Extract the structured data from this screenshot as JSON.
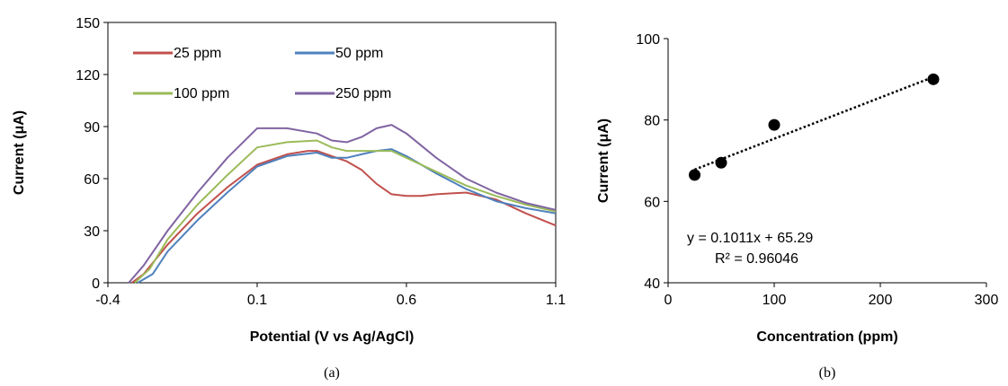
{
  "chart_data": [
    {
      "type": "line",
      "caption": "(a)",
      "xlabel": "Potential (V vs Ag/AgCl)",
      "ylabel": "Current  (μA)",
      "xlim": [
        -0.4,
        1.1
      ],
      "ylim": [
        0,
        150
      ],
      "xticks": [
        -0.4,
        0.1,
        0.6,
        1.1
      ],
      "xtick_labels": [
        "-0.4",
        "0.1",
        "0.6",
        "1.1"
      ],
      "yticks": [
        0,
        30,
        60,
        90,
        120,
        150
      ],
      "ytick_labels": [
        "0",
        "30",
        "60",
        "90",
        "120",
        "150"
      ],
      "grid": false,
      "legend": "top-left, two columns",
      "series": [
        {
          "name": "25 ppm",
          "color": "#c0504d",
          "x": [
            -0.32,
            -0.28,
            -0.2,
            -0.1,
            0.0,
            0.1,
            0.2,
            0.27,
            0.3,
            0.35,
            0.4,
            0.45,
            0.5,
            0.55,
            0.6,
            0.65,
            0.7,
            0.8,
            0.9,
            1.0,
            1.1
          ],
          "y": [
            0,
            5,
            22,
            40,
            55,
            68,
            74,
            76,
            76,
            73,
            70,
            65,
            57,
            51,
            50,
            50,
            51,
            52,
            48,
            40,
            33
          ]
        },
        {
          "name": "50 ppm",
          "color": "#4f81bd",
          "x": [
            -0.3,
            -0.25,
            -0.2,
            -0.1,
            0.0,
            0.1,
            0.2,
            0.3,
            0.35,
            0.4,
            0.45,
            0.5,
            0.55,
            0.6,
            0.7,
            0.8,
            0.9,
            1.0,
            1.1
          ],
          "y": [
            0,
            5,
            18,
            36,
            52,
            67,
            73,
            75,
            72,
            72,
            74,
            76,
            77,
            73,
            63,
            54,
            47,
            43,
            40
          ]
        },
        {
          "name": "100 ppm",
          "color": "#9bbb59",
          "x": [
            -0.31,
            -0.26,
            -0.2,
            -0.1,
            0.0,
            0.1,
            0.2,
            0.3,
            0.35,
            0.4,
            0.45,
            0.5,
            0.55,
            0.6,
            0.7,
            0.8,
            0.9,
            1.0,
            1.1
          ],
          "y": [
            0,
            8,
            25,
            45,
            62,
            78,
            81,
            82,
            78,
            76,
            76,
            76,
            76,
            72,
            64,
            56,
            50,
            45,
            41
          ]
        },
        {
          "name": "250 ppm",
          "color": "#8064a2",
          "x": [
            -0.33,
            -0.28,
            -0.2,
            -0.1,
            0.0,
            0.1,
            0.2,
            0.3,
            0.35,
            0.4,
            0.45,
            0.5,
            0.55,
            0.6,
            0.7,
            0.8,
            0.9,
            1.0,
            1.1
          ],
          "y": [
            0,
            10,
            30,
            52,
            72,
            89,
            89,
            86,
            82,
            81,
            84,
            89,
            91,
            86,
            72,
            60,
            52,
            46,
            42
          ]
        }
      ]
    },
    {
      "type": "scatter",
      "caption": "(b)",
      "xlabel": "Concentration (ppm)",
      "ylabel": "Current (μA)",
      "xlim": [
        0,
        300
      ],
      "ylim": [
        40,
        100
      ],
      "xticks": [
        0,
        100,
        200,
        300
      ],
      "xtick_labels": [
        "0",
        "100",
        "200",
        "300"
      ],
      "yticks": [
        40,
        60,
        80,
        100
      ],
      "ytick_labels": [
        "40",
        "60",
        "80",
        "100"
      ],
      "grid": false,
      "series": [
        {
          "color": "#000000",
          "x": [
            25,
            50,
            100,
            250
          ],
          "y": [
            66.5,
            69.5,
            78.8,
            90
          ]
        }
      ],
      "trendline": {
        "slope": 0.1011,
        "intercept": 65.29,
        "style": "dotted",
        "color": "#000000"
      },
      "equation_text": "y = 0.1011x + 65.29",
      "r2_text": "R² = 0.96046"
    }
  ]
}
